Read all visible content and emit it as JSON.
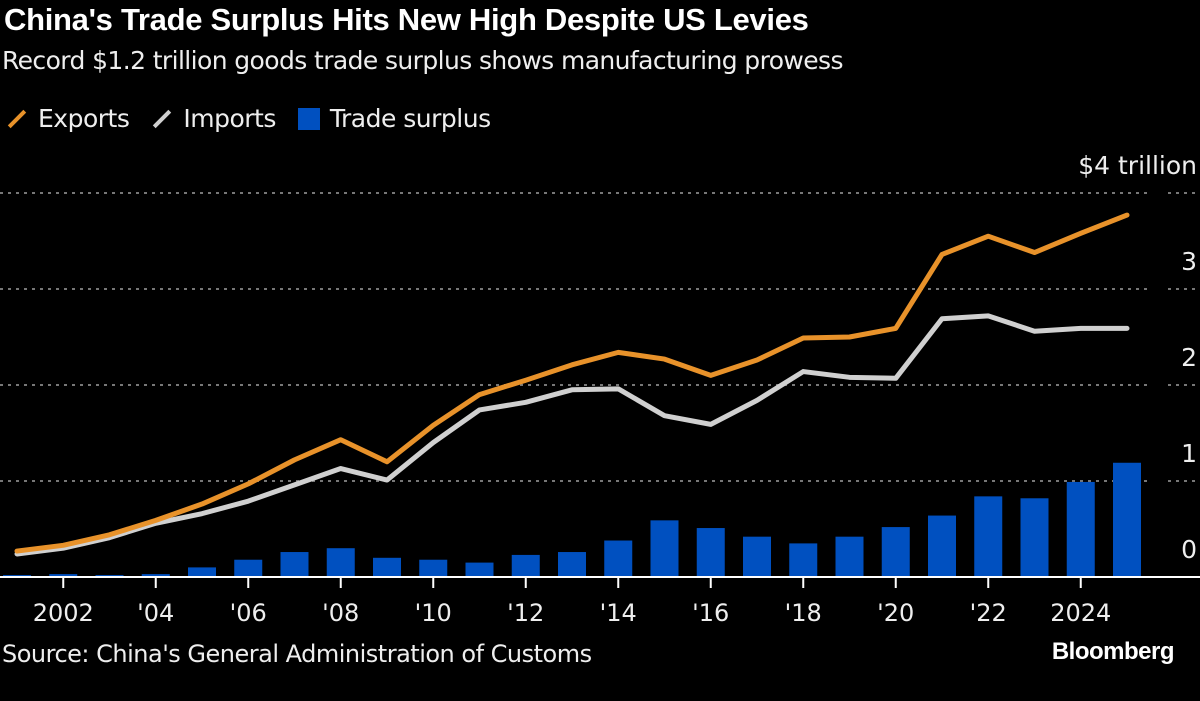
{
  "header": {
    "title": "China's Trade Surplus Hits New High Despite US Levies",
    "subtitle": "Record $1.2 trillion goods trade surplus shows manufacturing prowess"
  },
  "footer": {
    "source": "Source: China's General Administration of Customs",
    "brand": "Bloomberg"
  },
  "colors": {
    "exports": "#e8922a",
    "imports": "#d0d0d0",
    "surplus": "#0050c0",
    "background": "#000000",
    "grid": "#777777"
  },
  "chart_data": {
    "type": "line+bar",
    "title": "China's Trade Surplus Hits New High Despite US Levies",
    "subtitle": "Record $1.2 trillion goods trade surplus shows manufacturing prowess",
    "x": [
      2001,
      2002,
      2003,
      2004,
      2005,
      2006,
      2007,
      2008,
      2009,
      2010,
      2011,
      2012,
      2013,
      2014,
      2015,
      2016,
      2017,
      2018,
      2019,
      2020,
      2021,
      2022,
      2023,
      2024,
      2025
    ],
    "x_tick_values": [
      2002,
      2004,
      2006,
      2008,
      2010,
      2012,
      2014,
      2016,
      2018,
      2020,
      2022,
      2024
    ],
    "x_tick_labels": [
      "2002",
      "'04",
      "'06",
      "'08",
      "'10",
      "'12",
      "'14",
      "'16",
      "'18",
      "'20",
      "'22",
      "2024"
    ],
    "y_tick_values": [
      0,
      1,
      2,
      3,
      4
    ],
    "y_tick_labels": [
      "0",
      "1",
      "2",
      "3",
      "$4 trillion"
    ],
    "ylim": [
      0,
      4
    ],
    "grid": true,
    "y_axis_side": "right",
    "legend_placement": "top-left",
    "series": [
      {
        "name": "Exports",
        "kind": "line",
        "values": [
          0.27,
          0.33,
          0.44,
          0.59,
          0.76,
          0.97,
          1.22,
          1.43,
          1.2,
          1.58,
          1.9,
          2.05,
          2.21,
          2.34,
          2.27,
          2.1,
          2.26,
          2.49,
          2.5,
          2.59,
          3.36,
          3.55,
          3.38,
          3.58,
          3.77
        ]
      },
      {
        "name": "Imports",
        "kind": "line",
        "values": [
          0.24,
          0.3,
          0.41,
          0.56,
          0.66,
          0.79,
          0.96,
          1.13,
          1.01,
          1.4,
          1.74,
          1.82,
          1.95,
          1.96,
          1.68,
          1.59,
          1.84,
          2.14,
          2.08,
          2.07,
          2.69,
          2.72,
          2.56,
          2.59,
          2.59
        ]
      },
      {
        "name": "Trade surplus",
        "kind": "bar",
        "values": [
          0.02,
          0.03,
          0.02,
          0.03,
          0.1,
          0.18,
          0.26,
          0.3,
          0.2,
          0.18,
          0.15,
          0.23,
          0.26,
          0.38,
          0.59,
          0.51,
          0.42,
          0.35,
          0.42,
          0.52,
          0.64,
          0.84,
          0.82,
          0.99,
          1.19
        ]
      }
    ]
  }
}
